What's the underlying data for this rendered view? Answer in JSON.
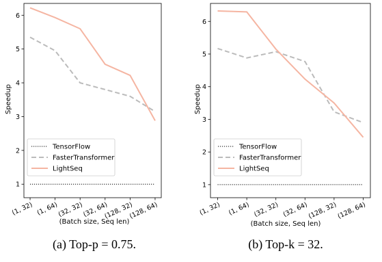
{
  "captions": [
    "(a) Top-p = 0.75.",
    "(b) Top-k = 32."
  ],
  "chart_data": [
    {
      "type": "line",
      "x_categories": [
        "(1, 32)",
        "(1, 64)",
        "(32, 32)",
        "(32, 64)",
        "(128, 32)",
        "(128, 64)"
      ],
      "xlabel": "(Batch size, Seq len)",
      "ylabel": "Speedup",
      "yticks": [
        1,
        2,
        3,
        4,
        5,
        6
      ],
      "ylim": [
        0.6,
        6.35
      ],
      "legend_position": "lower-left",
      "series": [
        {
          "name": "TensorFlow",
          "values": [
            1,
            1,
            1,
            1,
            1,
            1
          ],
          "color": "#000000",
          "style": "dotted"
        },
        {
          "name": "FasterTransformer",
          "values": [
            5.35,
            4.95,
            4.0,
            3.8,
            3.6,
            3.15
          ],
          "color": "#bbbbbb",
          "style": "dashed"
        },
        {
          "name": "LightSeq",
          "values": [
            6.22,
            5.93,
            5.6,
            4.55,
            4.22,
            2.88
          ],
          "color": "#f5b5a2",
          "style": "solid"
        }
      ]
    },
    {
      "type": "line",
      "x_categories": [
        "(1, 32)",
        "(1, 64)",
        "(32, 32)",
        "(32, 64)",
        "(128, 32)",
        "(128, 64)"
      ],
      "xlabel": "(Batch size, Seq len)",
      "ylabel": "Speedup",
      "yticks": [
        1,
        2,
        3,
        4,
        5,
        6
      ],
      "ylim": [
        0.6,
        6.55
      ],
      "legend_position": "lower-left",
      "series": [
        {
          "name": "TensorFlow",
          "values": [
            1,
            1,
            1,
            1,
            1,
            1
          ],
          "color": "#000000",
          "style": "dotted"
        },
        {
          "name": "FasterTransformer",
          "values": [
            5.17,
            4.88,
            5.07,
            4.77,
            3.23,
            2.9
          ],
          "color": "#bbbbbb",
          "style": "dashed"
        },
        {
          "name": "LightSeq",
          "values": [
            6.32,
            6.29,
            5.15,
            4.23,
            3.5,
            2.45
          ],
          "color": "#f5b5a2",
          "style": "solid"
        }
      ]
    }
  ]
}
